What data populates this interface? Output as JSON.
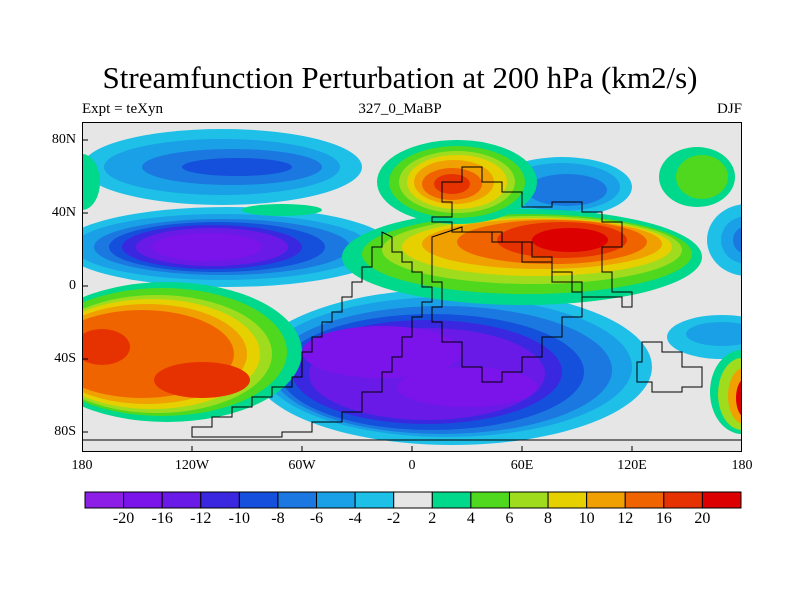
{
  "title": "Streamfunction Perturbation at 200 hPa (km2/s)",
  "subtitle_left": "Expt = teXyn",
  "subtitle_center": "327_0_MaBP",
  "subtitle_right": "DJF",
  "y_ticks": [
    "80N",
    "40N",
    "0",
    "40S",
    "80S"
  ],
  "x_ticks": [
    "180",
    "120W",
    "60W",
    "0",
    "60E",
    "120E",
    "180"
  ],
  "colorbar": {
    "labels": [
      "-20",
      "-16",
      "-12",
      "-10",
      "-8",
      "-6",
      "-4",
      "-2",
      "2",
      "4",
      "6",
      "8",
      "10",
      "12",
      "16",
      "20"
    ],
    "colors": [
      "#8c1ee6",
      "#7a14ea",
      "#6a1ae6",
      "#3a28e0",
      "#1450dc",
      "#1a78e0",
      "#1aa0e6",
      "#1ec0e8",
      "#e6e6e6",
      "#00d88c",
      "#50d81e",
      "#a0dc1e",
      "#e6d000",
      "#f0a000",
      "#f06400",
      "#e63200",
      "#dc0000"
    ],
    "values": [
      -20,
      -16,
      -12,
      -10,
      -8,
      -6,
      -4,
      -2,
      2,
      4,
      6,
      8,
      10,
      12,
      16,
      20
    ]
  }
}
